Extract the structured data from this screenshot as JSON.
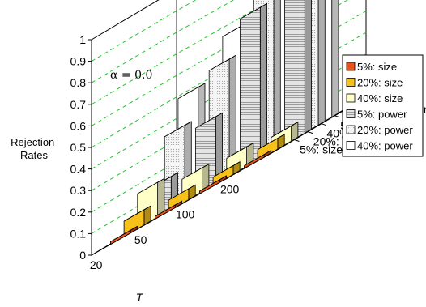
{
  "chart_data": {
    "type": "bar",
    "subtype": "3d-bar",
    "annotation": "α = 0.0",
    "xlabel": "T",
    "ylabel": "Rejection\nRates",
    "categories": [
      "20",
      "50",
      "100",
      "200"
    ],
    "zlim": [
      0,
      1
    ],
    "zticks": [
      "0",
      "0.1",
      "0.2",
      "0.3",
      "0.4",
      "0.5",
      "0.6",
      "0.7",
      "0.8",
      "0.9",
      "1"
    ],
    "grid": true,
    "legend_position": "right",
    "series": [
      {
        "name": "5%: size",
        "values": [
          0.01,
          0.01,
          0.01,
          0.01
        ],
        "color": "#E8541A"
      },
      {
        "name": "20%: size",
        "values": [
          0.07,
          0.05,
          0.04,
          0.05
        ],
        "color": "#F7C11A"
      },
      {
        "name": "40%: size",
        "values": [
          0.16,
          0.11,
          0.09,
          0.07
        ],
        "color": "#FFFFC8"
      },
      {
        "name": "5%: power",
        "values": [
          0.15,
          0.31,
          0.7,
          0.86
        ],
        "color": "#D6D6D6"
      },
      {
        "name": "20%: power",
        "values": [
          0.35,
          0.54,
          0.82,
          0.95
        ],
        "color": "#F0F0F0"
      },
      {
        "name": "40%: power",
        "values": [
          0.49,
          0.66,
          0.88,
          0.98
        ],
        "color": "#FFFFFF"
      }
    ]
  }
}
